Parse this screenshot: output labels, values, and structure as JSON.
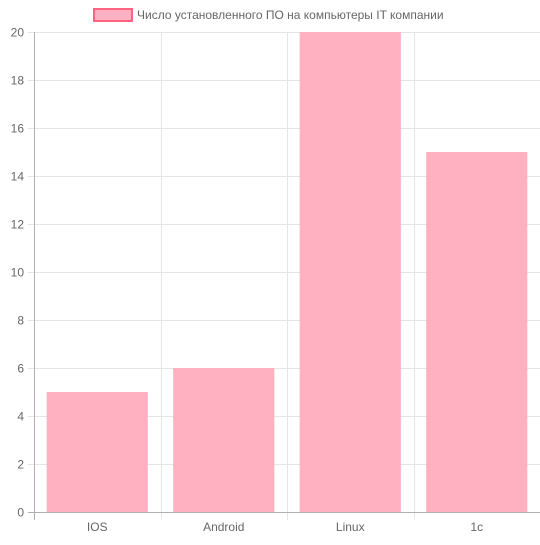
{
  "chart_data": {
    "type": "bar",
    "title": "",
    "xlabel": "",
    "ylabel": "",
    "categories": [
      "IOS",
      "Android",
      "Linux",
      "1c"
    ],
    "series": [
      {
        "name": "Число установленного ПО на компьютеры IT компании",
        "values": [
          5,
          6,
          20,
          15
        ],
        "color": "#ffb1c1",
        "border_color": "#ff6384"
      }
    ],
    "ylim": [
      0,
      20
    ],
    "y_ticks": [
      0,
      2,
      4,
      6,
      8,
      10,
      12,
      14,
      16,
      18,
      20
    ],
    "grid": true,
    "legend_position": "top-center",
    "colors": {
      "grid": "#e5e5e5",
      "axis": "#b0b0b0",
      "tick_text": "#666666"
    }
  }
}
